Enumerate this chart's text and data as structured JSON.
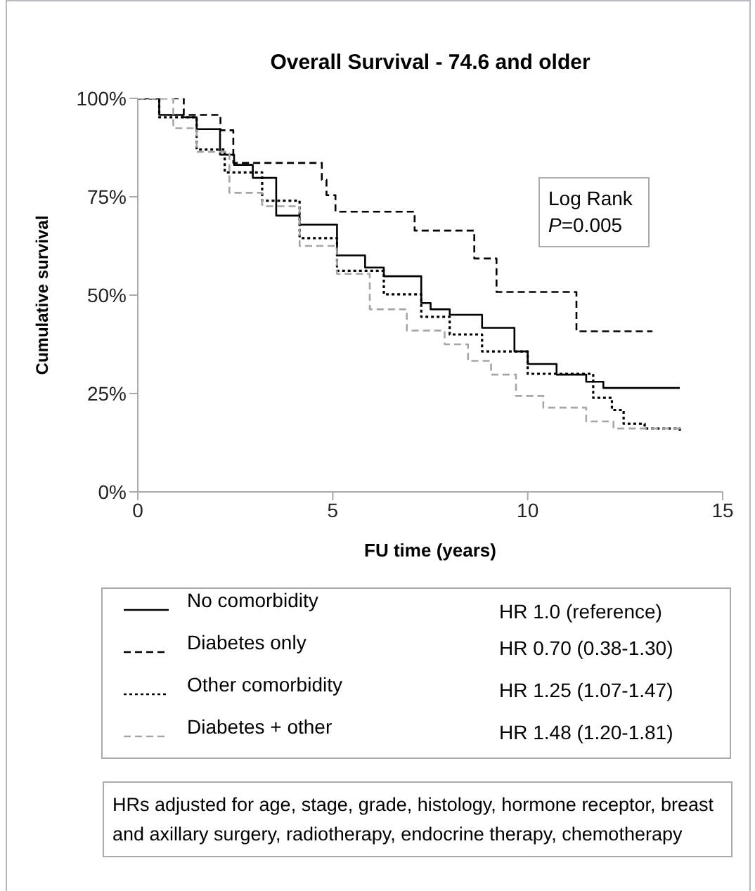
{
  "chart_data": {
    "type": "step",
    "title": "Overall Survival - 74.6 and older",
    "xlabel": "FU time (years)",
    "ylabel": "Cumulative survival",
    "xlim": [
      0,
      15
    ],
    "xticks": [
      0,
      5,
      10,
      15
    ],
    "ylim": [
      0,
      100
    ],
    "yticks": [
      {
        "value": 0,
        "label": "0%"
      },
      {
        "value": 25,
        "label": "25%"
      },
      {
        "value": 50,
        "label": "50%"
      },
      {
        "value": 75,
        "label": "75%"
      },
      {
        "value": 100,
        "label": "100%"
      }
    ],
    "grid": false,
    "legend": "bottom",
    "marker": "none",
    "series": [
      {
        "name": "No comorbidity",
        "color": "#000000",
        "line_style": "solid",
        "x": [
          0,
          0.55,
          1.15,
          1.51,
          2.11,
          2.47,
          2.95,
          3.55,
          4.15,
          5.11,
          5.83,
          6.31,
          7.27,
          7.51,
          8.0,
          8.83,
          9.66,
          10.0,
          10.74,
          11.5,
          11.94,
          13.9
        ],
        "values": [
          100,
          95.8,
          95.2,
          92.2,
          85.7,
          83.1,
          79.8,
          70.2,
          67.9,
          60.1,
          57,
          54.8,
          48,
          46.4,
          45,
          41.7,
          35.7,
          32.5,
          29.8,
          28,
          26.4,
          26.4
        ]
      },
      {
        "name": "Diabetes only",
        "color": "#000000",
        "line_style": "dashed",
        "x": [
          0,
          1.18,
          2.12,
          2.45,
          4.72,
          4.84,
          5.07,
          7.1,
          8.63,
          9.2,
          11.25,
          13.2
        ],
        "values": [
          100,
          95.8,
          91.9,
          83.6,
          79.3,
          75.4,
          71.2,
          66.4,
          59.3,
          50.8,
          40.8,
          40.8
        ]
      },
      {
        "name": "Other comorbidity",
        "color": "#000000",
        "line_style": "dotted",
        "x": [
          0,
          0.55,
          1.51,
          2.23,
          3.19,
          4.15,
          5.11,
          6.31,
          7.27,
          8.0,
          8.83,
          10.0,
          11.68,
          12.16,
          12.46,
          13.0,
          13.9
        ],
        "values": [
          100,
          95.2,
          87,
          81.2,
          74,
          64.5,
          56.2,
          50.2,
          44.5,
          40,
          35.7,
          30,
          23.9,
          20.8,
          17.3,
          16.1,
          14.8
        ]
      },
      {
        "name": "Diabetes + other",
        "color": "#a6a6a6",
        "line_style": "dashed",
        "x": [
          0,
          0.91,
          1.51,
          2.35,
          3.19,
          4.15,
          5.11,
          5.95,
          6.9,
          7.87,
          8.47,
          9.06,
          9.7,
          10.4,
          11.5,
          12.2,
          13.9
        ],
        "values": [
          100,
          92.4,
          86.4,
          76,
          72.6,
          62.5,
          55.4,
          46.4,
          41,
          37.5,
          33.3,
          29.8,
          24.4,
          21.4,
          17.9,
          16.1,
          14.8
        ]
      }
    ],
    "annotations": [
      "Log Rank",
      "P=0.005",
      "HR 1.0 (reference)",
      "HR 0.70 (0.38-1.30)",
      "HR 1.25 (1.07-1.47)",
      "HR 1.48 (1.20-1.81)",
      "HRs adjusted for age, stage, grade, histology, hormone receptor, breast and axillary surgery, radiotherapy, endocrine therapy, chemotherapy"
    ]
  }
}
